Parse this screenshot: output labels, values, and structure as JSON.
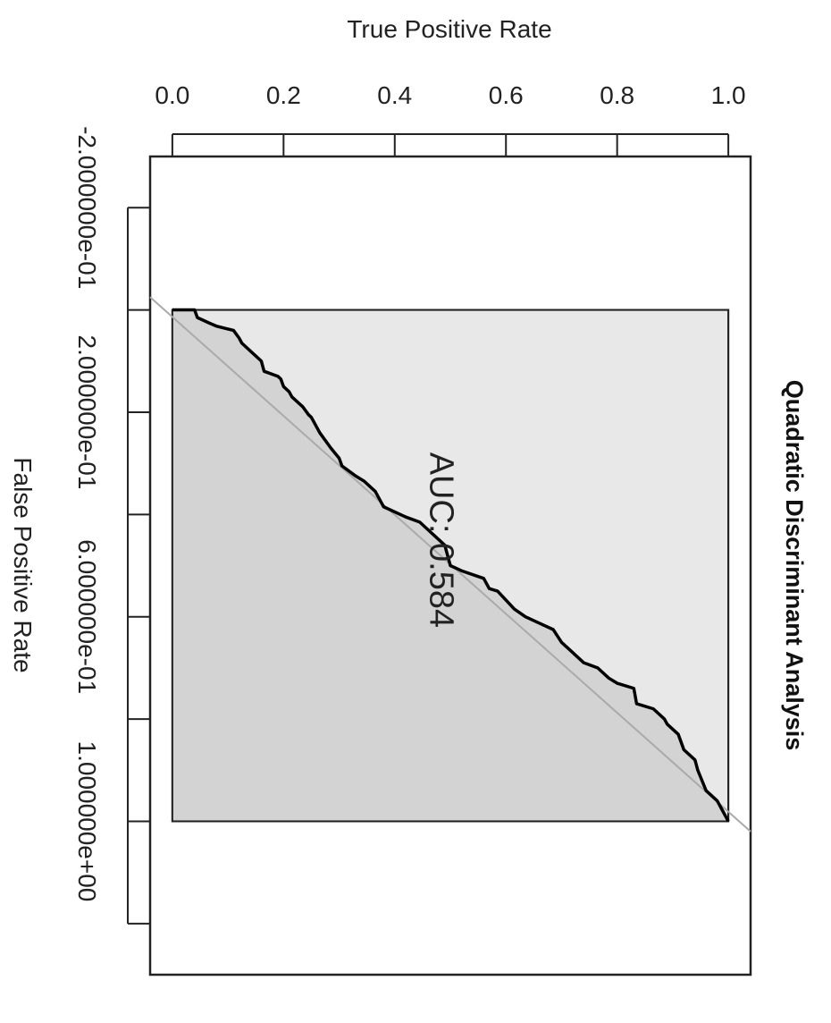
{
  "chart_data": {
    "type": "line",
    "title": "Quadratic Discriminant Analysis",
    "xlabel": "False Positive Rate",
    "ylabel": "True Positive Rate",
    "rotation": "plot rotated 90 degrees clockwise",
    "xlim": [
      -0.3,
      1.3
    ],
    "ylim": [
      -0.04,
      1.04
    ],
    "x_ticks": [
      -0.2,
      0.0,
      0.2,
      0.4,
      0.6,
      0.8,
      1.0,
      1.2
    ],
    "x_tick_labels": [
      "-2.000000e-01",
      "2.000000e-01",
      "6.000000e-01",
      "1.000000e+00"
    ],
    "x_tick_labels_at": [
      -0.2,
      0.2,
      0.6,
      1.0
    ],
    "y_ticks": [
      0.0,
      0.2,
      0.4,
      0.6,
      0.8,
      1.0
    ],
    "y_tick_labels": [
      "0.0",
      "0.2",
      "0.4",
      "0.6",
      "0.8",
      "1.0"
    ],
    "annotation": "AUC: 0.584",
    "auc": 0.584,
    "series": [
      {
        "x": [
          0.0,
          0.0,
          0.015,
          0.025,
          0.032,
          0.04,
          0.055,
          0.065,
          0.09,
          0.1,
          0.12,
          0.13,
          0.135,
          0.15,
          0.16,
          0.17,
          0.19,
          0.205,
          0.21,
          0.23,
          0.24,
          0.27,
          0.29,
          0.305,
          0.325,
          0.335,
          0.355,
          0.365,
          0.385,
          0.405,
          0.415,
          0.425,
          0.45,
          0.46,
          0.5,
          0.51,
          0.525,
          0.545,
          0.55,
          0.585,
          0.6,
          0.61,
          0.625,
          0.65,
          0.67,
          0.69,
          0.7,
          0.72,
          0.73,
          0.74,
          0.77,
          0.78,
          0.8,
          0.81,
          0.83,
          0.86,
          0.88,
          0.9,
          0.94,
          0.95,
          0.96,
          0.98,
          1.0
        ],
        "y": [
          0.0,
          0.04,
          0.045,
          0.065,
          0.08,
          0.11,
          0.12,
          0.125,
          0.15,
          0.16,
          0.165,
          0.19,
          0.195,
          0.2,
          0.21,
          0.215,
          0.235,
          0.245,
          0.25,
          0.26,
          0.265,
          0.285,
          0.3,
          0.305,
          0.33,
          0.345,
          0.365,
          0.37,
          0.38,
          0.42,
          0.445,
          0.455,
          0.48,
          0.49,
          0.5,
          0.52,
          0.56,
          0.57,
          0.585,
          0.615,
          0.635,
          0.655,
          0.685,
          0.7,
          0.72,
          0.74,
          0.765,
          0.785,
          0.8,
          0.83,
          0.835,
          0.865,
          0.885,
          0.89,
          0.91,
          0.92,
          0.94,
          0.945,
          0.96,
          0.97,
          0.98,
          0.99,
          1.0
        ]
      }
    ],
    "diagonal": {
      "x": [
        0,
        1
      ],
      "y": [
        0,
        1
      ]
    },
    "grid": false,
    "colors": {
      "curve": "#000000",
      "diagonal": "#aaaaaa",
      "area_under": "#d3d3d3",
      "area_over": "#e8e8e8"
    }
  }
}
